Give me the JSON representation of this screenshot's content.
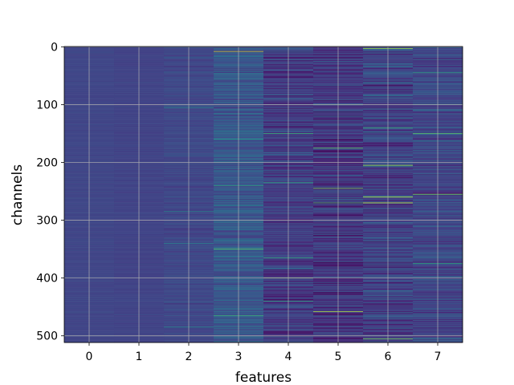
{
  "chart_data": {
    "type": "heatmap",
    "title": "",
    "xlabel": "features",
    "ylabel": "channels",
    "x_categories": [
      "0",
      "1",
      "2",
      "3",
      "4",
      "5",
      "6",
      "7"
    ],
    "xlim": [
      -0.5,
      7.5
    ],
    "ylim": [
      511.5,
      -0.5
    ],
    "n_rows": 512,
    "n_cols": 8,
    "y_ticks": [
      "0",
      "100",
      "200",
      "300",
      "400",
      "500"
    ],
    "y_tick_values": [
      0,
      100,
      200,
      300,
      400,
      500
    ],
    "grid": true,
    "colormap": "viridis",
    "column_profiles": [
      {
        "feature": 0,
        "mean": 0.26,
        "spread": 0.03,
        "highlights": []
      },
      {
        "feature": 1,
        "mean": 0.25,
        "spread": 0.03,
        "highlights": []
      },
      {
        "feature": 2,
        "mean": 0.27,
        "spread": 0.08,
        "highlights": [
          [
            105,
            0.6
          ],
          [
            285,
            0.58
          ],
          [
            340,
            0.55
          ],
          [
            485,
            0.6
          ]
        ]
      },
      {
        "feature": 3,
        "mean": 0.34,
        "spread": 0.18,
        "highlights": [
          [
            8,
            0.95
          ],
          [
            160,
            0.65
          ],
          [
            240,
            0.7
          ],
          [
            350,
            0.8
          ],
          [
            465,
            0.75
          ]
        ]
      },
      {
        "feature": 4,
        "mean": 0.22,
        "spread": 0.2,
        "highlights": [
          [
            150,
            0.75
          ],
          [
            235,
            0.7
          ],
          [
            365,
            0.72
          ],
          [
            400,
            0.9
          ],
          [
            440,
            0.7
          ]
        ]
      },
      {
        "feature": 5,
        "mean": 0.2,
        "spread": 0.22,
        "highlights": [
          [
            100,
            0.75
          ],
          [
            175,
            0.8
          ],
          [
            245,
            0.85
          ],
          [
            270,
            0.78
          ],
          [
            458,
            0.92
          ]
        ]
      },
      {
        "feature": 6,
        "mean": 0.25,
        "spread": 0.22,
        "highlights": [
          [
            3,
            0.9
          ],
          [
            140,
            0.75
          ],
          [
            205,
            0.9
          ],
          [
            260,
            0.95
          ],
          [
            270,
            0.95
          ],
          [
            505,
            0.85
          ]
        ]
      },
      {
        "feature": 7,
        "mean": 0.26,
        "spread": 0.18,
        "highlights": [
          [
            45,
            0.7
          ],
          [
            150,
            0.8
          ],
          [
            255,
            0.85
          ],
          [
            375,
            0.7
          ]
        ]
      }
    ]
  }
}
